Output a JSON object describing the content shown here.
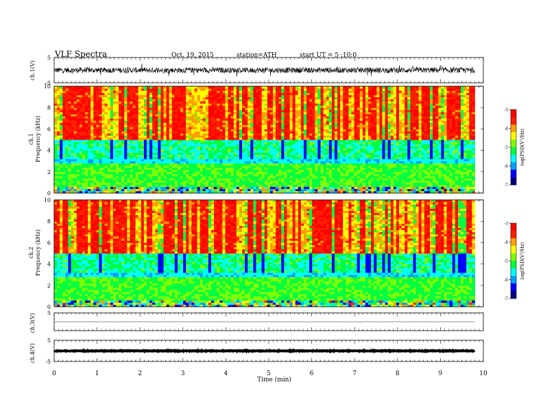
{
  "header": {
    "title": "VLF Spectra",
    "date": "Oct. 19, 2015",
    "station": "station=ATH",
    "start": "start UT = 5 :10:0"
  },
  "colors": {
    "colormap": [
      "#000080",
      "#0000ff",
      "#00a0ff",
      "#00ffff",
      "#00ff40",
      "#80ff00",
      "#ffff00",
      "#ffa000",
      "#ff2000",
      "#ff0000"
    ]
  },
  "chart_data": [
    {
      "type": "line",
      "panel": "ch1-waveform",
      "ylabel": "ch.1(V)",
      "ylim": [
        -5,
        5
      ],
      "y_ticks": [
        "5",
        "-5"
      ],
      "xlim": [
        0,
        10
      ],
      "description_values": {
        "typical_amplitude_v": [
          -2,
          2
        ],
        "mean_v": 0
      }
    },
    {
      "type": "heatmap",
      "panel": "ch1-spectrogram",
      "ylabel": [
        "ch.1",
        "Frequency (kHz)"
      ],
      "ylim": [
        0,
        10
      ],
      "y_ticks": [
        "0",
        "2",
        "4",
        "6",
        "8",
        "10"
      ],
      "xlim": [
        0,
        10
      ],
      "data_end_min": 9.8,
      "colorbar": {
        "label": "log(PSD(V²/Hz)",
        "range": [
          -7,
          -3
        ],
        "ticks": [
          "-3",
          "-4",
          "-5",
          "-6",
          "-7"
        ]
      }
    },
    {
      "type": "heatmap",
      "panel": "ch2-spectrogram",
      "ylabel": [
        "ch.2",
        "Frequency (kHz)"
      ],
      "ylim": [
        0,
        10
      ],
      "y_ticks": [
        "0",
        "2",
        "4",
        "6",
        "8",
        "10"
      ],
      "xlim": [
        0,
        10
      ],
      "data_end_min": 9.8,
      "colorbar": {
        "label": "log(PSD(V²/Hz)",
        "range": [
          -7,
          -3
        ],
        "ticks": [
          "-3",
          "-4",
          "-5",
          "-6",
          "-7"
        ]
      }
    },
    {
      "type": "line",
      "panel": "ch3-waveform",
      "ylabel": "ch.3(V)",
      "ylim": [
        -5,
        5
      ],
      "y_ticks": [
        "5"
      ],
      "xlim": [
        0,
        10
      ],
      "description_values": {
        "mean_v": 0
      }
    },
    {
      "type": "line",
      "panel": "ch4-waveform",
      "ylabel": "ch.4(V)",
      "ylim": [
        -5,
        5
      ],
      "y_ticks": [
        "5",
        "-5"
      ],
      "xlim": [
        0,
        10
      ],
      "description_values": {
        "mean_v": 0
      }
    }
  ],
  "x_axis": {
    "label": "Time (min)",
    "ticks": [
      "0",
      "1",
      "2",
      "3",
      "4",
      "5",
      "6",
      "7",
      "8",
      "9",
      "10"
    ],
    "range": [
      0,
      10
    ]
  }
}
